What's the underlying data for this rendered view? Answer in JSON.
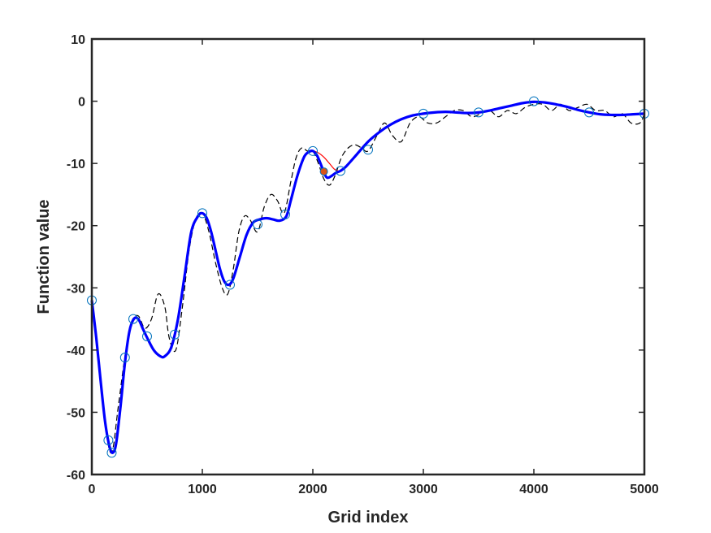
{
  "chart_data": {
    "type": "line",
    "title": "",
    "xlabel": "Grid index",
    "ylabel": "Function value",
    "xlim": [
      0,
      5000
    ],
    "ylim": [
      -60,
      10
    ],
    "xticks": [
      0,
      1000,
      2000,
      3000,
      4000,
      5000
    ],
    "yticks": [
      10,
      0,
      -10,
      -20,
      -30,
      -40,
      -50,
      -60
    ],
    "xtick_labels": [
      "0",
      "1000",
      "2000",
      "3000",
      "4000",
      "5000"
    ],
    "ytick_labels": [
      "10",
      "0",
      "-10",
      "-20",
      "-30",
      "-40",
      "-50",
      "-60"
    ],
    "grid": false,
    "series": [
      {
        "style": "dashed",
        "color": "#000000",
        "x": [
          0,
          60,
          120,
          180,
          240,
          300,
          360,
          420,
          480,
          540,
          600,
          660,
          700,
          760,
          820,
          880,
          940,
          1000,
          1060,
          1120,
          1180,
          1230,
          1280,
          1330,
          1380,
          1430,
          1500,
          1560,
          1620,
          1680,
          1740,
          1800,
          1850,
          1900,
          1950,
          2000,
          2050,
          2100,
          2150,
          2200,
          2260,
          2320,
          2380,
          2440,
          2500,
          2580,
          2650,
          2720,
          2800,
          2880,
          2960,
          3040,
          3120,
          3200,
          3280,
          3360,
          3440,
          3520,
          3600,
          3680,
          3760,
          3840,
          3920,
          4000,
          4080,
          4160,
          4240,
          4320,
          4400,
          4480,
          4560,
          4640,
          4720,
          4800,
          4880,
          4960,
          5000
        ],
        "y": [
          -32,
          -42,
          -52,
          -56.5,
          -49,
          -41,
          -35.5,
          -34.5,
          -36.5,
          -35,
          -31,
          -33,
          -38,
          -40,
          -33,
          -24,
          -19,
          -18,
          -21,
          -26,
          -30,
          -31,
          -27,
          -21,
          -18.5,
          -19,
          -21,
          -17,
          -15,
          -16,
          -18,
          -13,
          -9,
          -7.5,
          -8,
          -8,
          -10,
          -12.5,
          -13.5,
          -12,
          -9,
          -7.5,
          -7,
          -7.5,
          -8,
          -5.5,
          -3.5,
          -5.5,
          -6.5,
          -3.5,
          -2.5,
          -3.5,
          -3.5,
          -2.5,
          -1.5,
          -1.5,
          -2.5,
          -2,
          -1.5,
          -2.5,
          -1.5,
          -2,
          -1,
          -0.5,
          -0.5,
          -1.5,
          -0.5,
          -1.5,
          -1,
          -0.5,
          -1.5,
          -1.5,
          -2.5,
          -2,
          -3.5,
          -3.5,
          -2
        ]
      },
      {
        "style": "solid",
        "color": "#ff0000",
        "x": [
          0,
          40,
          80,
          120,
          160,
          190,
          220,
          260,
          300,
          340,
          380,
          420,
          460,
          500,
          560,
          620,
          660,
          720,
          780,
          840,
          900,
          960,
          1000,
          1040,
          1080,
          1120,
          1160,
          1200,
          1240,
          1280,
          1340,
          1400,
          1460,
          1520,
          1580,
          1640,
          1700,
          1760,
          1800,
          1860,
          1920,
          1960,
          2000,
          2050,
          2100,
          2150,
          2200,
          2250,
          2300,
          2400,
          2500,
          2600,
          2700,
          2800,
          2900,
          3000,
          3100,
          3200,
          3300,
          3400,
          3500,
          3600,
          3700,
          3800,
          3900,
          4000,
          4100,
          4200,
          4300,
          4400,
          4500,
          4600,
          4700,
          4800,
          4900,
          5000
        ],
        "y": [
          -32,
          -38,
          -45,
          -51.5,
          -55.5,
          -56.5,
          -55,
          -49,
          -42,
          -37,
          -35,
          -35,
          -36.5,
          -38,
          -40,
          -41,
          -41,
          -39.5,
          -35,
          -28,
          -21,
          -18.5,
          -18,
          -18.8,
          -21,
          -24,
          -27,
          -29,
          -29.5,
          -28.5,
          -25,
          -21.5,
          -19.5,
          -19,
          -18.8,
          -19,
          -19.2,
          -18.5,
          -16,
          -12,
          -9,
          -8.2,
          -8,
          -8.3,
          -9,
          -10,
          -11,
          -11.2,
          -10.5,
          -8.5,
          -6.5,
          -5,
          -3.8,
          -2.9,
          -2.3,
          -2,
          -1.8,
          -1.7,
          -1.8,
          -1.9,
          -1.8,
          -1.5,
          -1.1,
          -0.7,
          -0.3,
          -0.1,
          -0.2,
          -0.5,
          -0.9,
          -1.4,
          -1.8,
          -2.1,
          -2.2,
          -2.2,
          -2.1,
          -2
        ]
      },
      {
        "style": "thick",
        "color": "#0000ff",
        "x": [
          0,
          40,
          80,
          120,
          160,
          190,
          220,
          260,
          300,
          340,
          380,
          420,
          460,
          500,
          560,
          620,
          660,
          720,
          780,
          840,
          900,
          960,
          1000,
          1040,
          1080,
          1120,
          1160,
          1200,
          1240,
          1280,
          1340,
          1400,
          1460,
          1520,
          1580,
          1640,
          1700,
          1760,
          1800,
          1860,
          1920,
          1960,
          2000,
          2040,
          2080,
          2100,
          2130,
          2170,
          2210,
          2250,
          2300,
          2400,
          2500,
          2600,
          2700,
          2800,
          2900,
          3000,
          3100,
          3200,
          3300,
          3400,
          3500,
          3600,
          3700,
          3800,
          3900,
          4000,
          4100,
          4200,
          4300,
          4400,
          4500,
          4600,
          4700,
          4800,
          4900,
          5000
        ],
        "y": [
          -32,
          -38,
          -45,
          -51.5,
          -55.5,
          -56.5,
          -55,
          -49,
          -42,
          -37,
          -35,
          -35,
          -36.5,
          -38,
          -40,
          -41,
          -41,
          -39.5,
          -35,
          -28,
          -21,
          -18.5,
          -18,
          -18.8,
          -21,
          -24,
          -27,
          -29,
          -29.5,
          -28.5,
          -25,
          -21.5,
          -19.5,
          -19,
          -18.8,
          -19,
          -19.2,
          -18.5,
          -16,
          -12,
          -9,
          -8.2,
          -8,
          -8.8,
          -10.5,
          -11.5,
          -12.3,
          -12,
          -11.5,
          -11.2,
          -10.5,
          -8.5,
          -6.5,
          -5,
          -3.8,
          -2.9,
          -2.3,
          -2,
          -1.8,
          -1.7,
          -1.8,
          -1.9,
          -1.8,
          -1.5,
          -1.1,
          -0.7,
          -0.3,
          -0.1,
          -0.2,
          -0.5,
          -0.9,
          -1.4,
          -1.8,
          -2.1,
          -2.2,
          -2.2,
          -2.1,
          -2
        ]
      },
      {
        "style": "markers",
        "marker": "circle",
        "color": "#0072bd",
        "x": [
          0,
          150,
          180,
          300,
          375,
          500,
          750,
          1000,
          1250,
          1500,
          1750,
          2000,
          2250,
          2500,
          3000,
          3500,
          4000,
          4500,
          5000
        ],
        "y": [
          -32,
          -54.5,
          -56.5,
          -41.2,
          -35,
          -37.8,
          -37.5,
          -18,
          -29.5,
          -19.8,
          -18.2,
          -8,
          -11.2,
          -7.8,
          -2,
          -1.8,
          0,
          -1.8,
          -2
        ]
      },
      {
        "style": "markers",
        "marker": "filled-circle",
        "color": "#d95319",
        "x": [
          2100
        ],
        "y": [
          -11.3
        ]
      }
    ]
  }
}
